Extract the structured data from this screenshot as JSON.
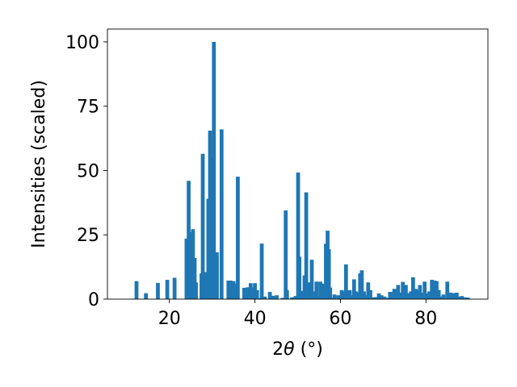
{
  "chart_data": {
    "type": "bar",
    "xlabel_prefix": "2",
    "xlabel_symbol": "θ",
    "xlabel_suffix": " (°)",
    "ylabel": "Intensities (scaled)",
    "xlim": [
      5.5,
      94.5
    ],
    "ylim": [
      0,
      105
    ],
    "xticks": [
      20,
      40,
      60,
      80
    ],
    "yticks": [
      0,
      25,
      50,
      75,
      100
    ],
    "bar_color": "#1f77b4",
    "grid": false,
    "bar_width": 0.9,
    "x": [
      12.3,
      14.5,
      17.3,
      19.5,
      21.2,
      24.0,
      24.5,
      25.0,
      25.5,
      25.9,
      26.2,
      27.5,
      27.8,
      28.6,
      29.1,
      29.5,
      29.9,
      30.4,
      31.1,
      32.2,
      33.8,
      34.3,
      35.0,
      35.5,
      36.0,
      37.5,
      38.3,
      39.0,
      39.5,
      40.0,
      40.5,
      41.1,
      41.6,
      42.3,
      43.5,
      44.2,
      45.1,
      46.5,
      47.2,
      47.5,
      48.7,
      49.5,
      50.1,
      50.4,
      51.0,
      51.6,
      52.0,
      52.4,
      52.9,
      53.3,
      53.8,
      54.4,
      54.8,
      55.3,
      56.1,
      56.6,
      57.0,
      57.3,
      57.6,
      58.3,
      58.6,
      59.5,
      60.3,
      60.8,
      61.3,
      61.7,
      62.2,
      62.7,
      63.2,
      63.6,
      64.1,
      64.6,
      65.0,
      65.5,
      66.0,
      66.5,
      67.0,
      67.5,
      68.2,
      69.0,
      69.6,
      70.3,
      71.1,
      71.6,
      72.2,
      72.6,
      73.1,
      73.5,
      74.0,
      74.6,
      75.3,
      75.8,
      76.5,
      77.0,
      77.6,
      78.1,
      78.6,
      79.1,
      79.7,
      80.3,
      80.8,
      81.4,
      82.0,
      82.5,
      83.0,
      83.5,
      84.1,
      85.0,
      85.8,
      86.5,
      87.2,
      87.8,
      88.4,
      89.2,
      89.8
    ],
    "values": [
      7,
      2.3,
      6.3,
      7.5,
      8.3,
      23.5,
      46,
      26,
      27.2,
      16,
      6.5,
      10,
      56.5,
      10.5,
      39,
      65.5,
      55,
      100,
      18.2,
      66,
      7.2,
      7.2,
      7,
      6,
      47.6,
      4.4,
      4.6,
      6.2,
      4.5,
      6.2,
      3.5,
      0.4,
      21.6,
      1,
      2.8,
      1.3,
      1.5,
      0.5,
      34.5,
      3.5,
      0.7,
      1.2,
      49.2,
      16.5,
      3.2,
      9.2,
      41.5,
      6.3,
      6.5,
      15.3,
      3,
      6.8,
      1,
      6.8,
      6,
      21.5,
      26.6,
      19.4,
      4.5,
      0.5,
      1.8,
      1.5,
      3.5,
      3,
      13.5,
      3.2,
      3.5,
      1.5,
      7.7,
      3,
      2.5,
      10,
      11.2,
      3,
      1.5,
      6.5,
      3.5,
      0.7,
      0.8,
      2.2,
      1.5,
      1,
      0.5,
      2.8,
      2.8,
      4,
      3,
      5.5,
      2.5,
      6.7,
      5.5,
      2.3,
      3,
      8.5,
      4,
      3.5,
      5.5,
      2.5,
      6.8,
      2.3,
      3,
      7.5,
      7.2,
      7,
      3.5,
      1,
      1.8,
      6.8,
      2.5,
      2.3,
      2.5,
      1,
      1.2,
      0.7,
      0.6
    ]
  }
}
